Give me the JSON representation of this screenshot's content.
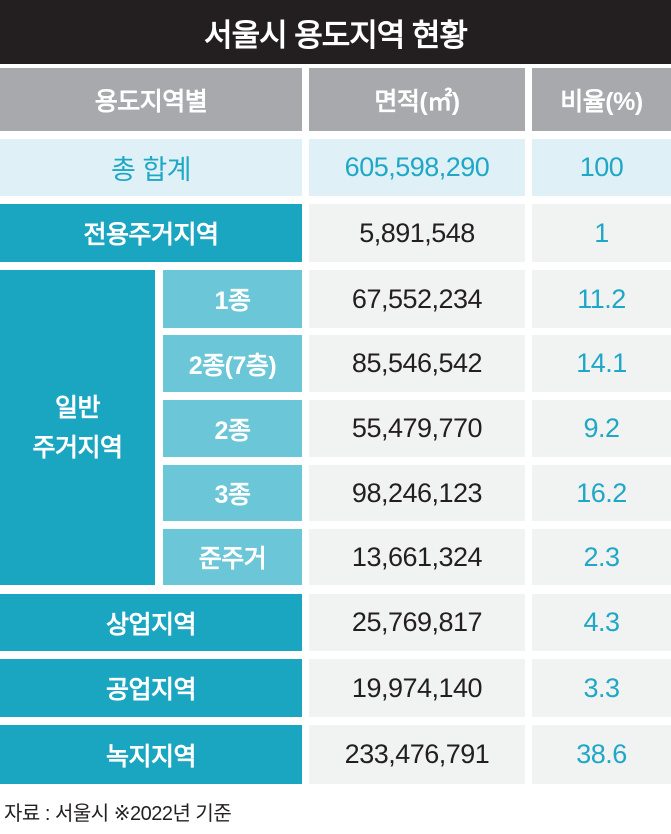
{
  "title": "서울시 용도지역 현황",
  "headers": {
    "zone": "용도지역별",
    "area": "면적(㎡)",
    "ratio": "비율(%)"
  },
  "total": {
    "label": "총 합계",
    "area": "605,598,290",
    "ratio": "100"
  },
  "general_group_label_line1": "일반",
  "general_group_label_line2": "주거지역",
  "rows": [
    {
      "label": "전용주거지역",
      "area": "5,891,548",
      "ratio": "1"
    },
    {
      "label": "1종",
      "area": "67,552,234",
      "ratio": "11.2"
    },
    {
      "label": "2종(7층)",
      "area": "85,546,542",
      "ratio": "14.1"
    },
    {
      "label": "2종",
      "area": "55,479,770",
      "ratio": "9.2"
    },
    {
      "label": "3종",
      "area": "98,246,123",
      "ratio": "16.2"
    },
    {
      "label": "준주거",
      "area": "13,661,324",
      "ratio": "2.3"
    },
    {
      "label": "상업지역",
      "area": "25,769,817",
      "ratio": "4.3"
    },
    {
      "label": "공업지역",
      "area": "19,974,140",
      "ratio": "3.3"
    },
    {
      "label": "녹지지역",
      "area": "233,476,791",
      "ratio": "38.6"
    }
  ],
  "source": "자료 : 서울시 ※2022년 기준",
  "colors": {
    "title_bg": "#231f20",
    "header_bg": "#a7a9ac",
    "total_bg": "#dff1f6",
    "accent_teal": "#1aa5c1",
    "sub_teal": "#6bc6d8",
    "value_bg": "#f1f2f2",
    "ratio_text": "#1fa8c6"
  },
  "chart_data": {
    "type": "table",
    "title": "서울시 용도지역 현황",
    "columns": [
      "용도지역별",
      "면적(㎡)",
      "비율(%)"
    ],
    "rows": [
      [
        "총 합계",
        605598290,
        100
      ],
      [
        "전용주거지역",
        5891548,
        1
      ],
      [
        "일반 주거지역 1종",
        67552234,
        11.2
      ],
      [
        "일반 주거지역 2종(7층)",
        85546542,
        14.1
      ],
      [
        "일반 주거지역 2종",
        55479770,
        9.2
      ],
      [
        "일반 주거지역 3종",
        98246123,
        16.2
      ],
      [
        "일반 주거지역 준주거",
        13661324,
        2.3
      ],
      [
        "상업지역",
        25769817,
        4.3
      ],
      [
        "공업지역",
        19974140,
        3.3
      ],
      [
        "녹지지역",
        233476791,
        38.6
      ]
    ]
  }
}
